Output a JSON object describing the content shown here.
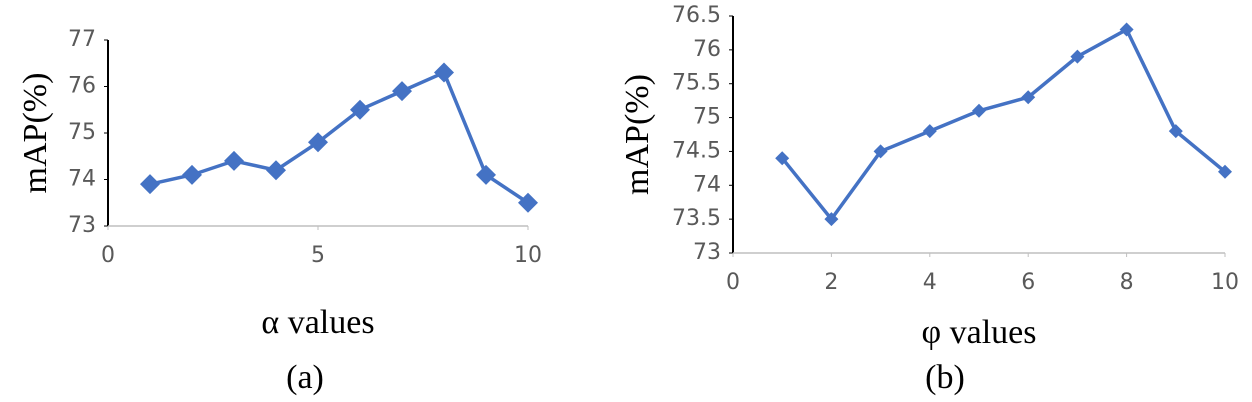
{
  "chart_data": [
    {
      "type": "line",
      "caption": "(a)",
      "x_label": "α values",
      "y_label": "mAP(%)",
      "x": [
        1,
        2,
        3,
        4,
        5,
        6,
        7,
        8,
        9,
        10
      ],
      "series": [
        {
          "name": "mAP",
          "color": "#4472c4",
          "values": [
            73.9,
            74.1,
            74.4,
            74.2,
            74.8,
            75.5,
            75.9,
            76.3,
            74.1,
            73.5
          ]
        }
      ],
      "xlim": [
        0,
        10
      ],
      "xticks": [
        0,
        5,
        10
      ],
      "ylim": [
        73,
        77
      ],
      "yticks": [
        73,
        74,
        75,
        76,
        77
      ]
    },
    {
      "type": "line",
      "caption": "(b)",
      "x_label": "φ values",
      "y_label": "mAP(%)",
      "x": [
        1,
        2,
        3,
        4,
        5,
        6,
        7,
        8,
        9,
        10
      ],
      "series": [
        {
          "name": "mAP",
          "color": "#4472c4",
          "values": [
            74.4,
            73.5,
            74.5,
            74.8,
            75.1,
            75.3,
            75.9,
            76.3,
            74.8,
            74.2
          ]
        }
      ],
      "xlim": [
        0,
        10
      ],
      "xticks": [
        0,
        2,
        4,
        6,
        8,
        10
      ],
      "ylim": [
        73,
        76.5
      ],
      "yticks": [
        73,
        73.5,
        74,
        74.5,
        75,
        75.5,
        76,
        76.5
      ]
    }
  ]
}
